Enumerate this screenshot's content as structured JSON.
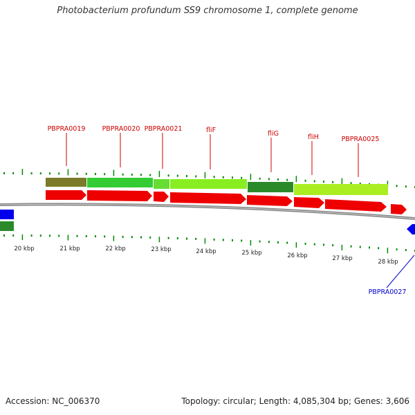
{
  "title": "Photobacterium profundum SS9 chromosome 1, complete genome",
  "footer": {
    "accession": "Accession: NC_006370",
    "summary": "Topology: circular; Length: 4,085,304 bp; Genes: 3,606"
  },
  "colors": {
    "forward_gene": "#ee0000",
    "reverse_gene": "#0000ee",
    "forward_label": "#cc0000",
    "reverse_label": "#0000cc",
    "tick": "#008800",
    "backbone": "#888888"
  },
  "kbp_labels": [
    "20 kbp",
    "21 kbp",
    "22 kbp",
    "23 kbp",
    "24 kbp",
    "25 kbp",
    "26 kbp",
    "27 kbp",
    "28 kbp"
  ],
  "gene_labels": [
    "PBPRA0019",
    "PBPRA0020",
    "PBPRA0021",
    "fliF",
    "fliG",
    "fliH",
    "PBPRA0025",
    "PBPRA0027"
  ]
}
